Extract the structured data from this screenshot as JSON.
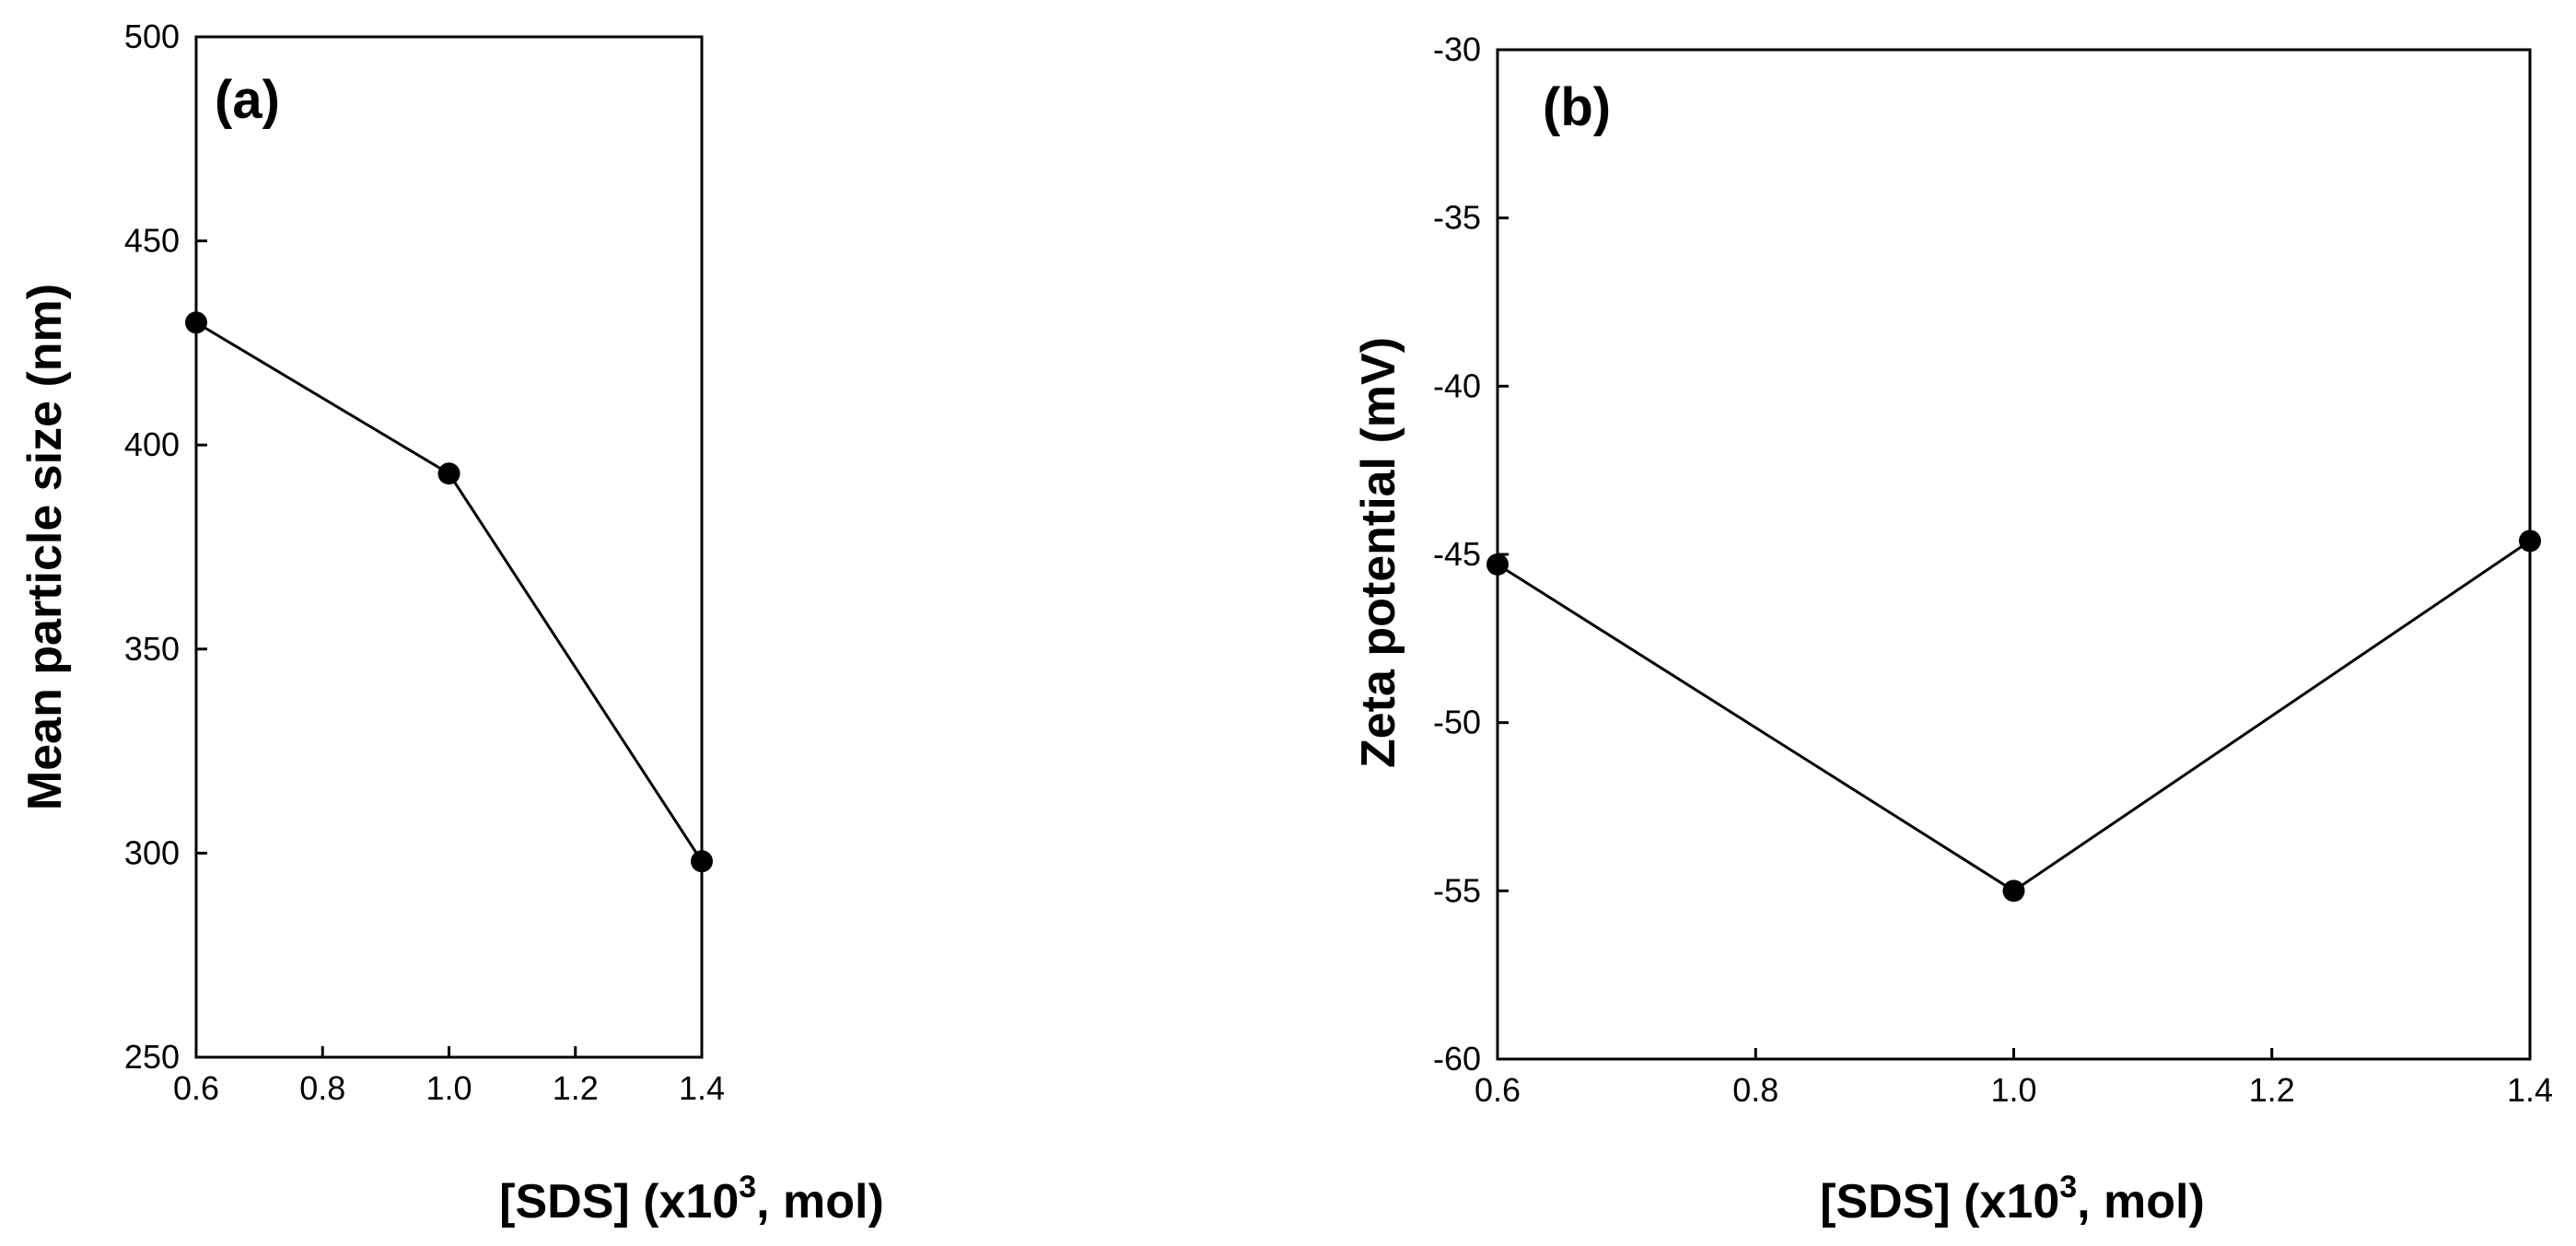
{
  "chart_data": [
    {
      "type": "line",
      "panel_label": "(a)",
      "title": "",
      "x": [
        0.6,
        1.0,
        1.4
      ],
      "series": [
        {
          "name": "Mean particle size",
          "values": [
            430,
            393,
            298
          ]
        }
      ],
      "xlabel": {
        "prefix": "[SDS] (x10",
        "superscript": "3",
        "suffix": ", mol)"
      },
      "ylabel": "Mean particle size (nm)",
      "xlim": [
        0.6,
        1.4
      ],
      "ylim": [
        250,
        500
      ],
      "x_ticks": [
        0.6,
        0.8,
        1.0,
        1.2,
        1.4
      ],
      "x_tick_labels": [
        "0.6",
        "0.8",
        "1.0",
        "1.2",
        "1.4"
      ],
      "y_ticks": [
        250,
        300,
        350,
        400,
        450,
        500
      ],
      "y_tick_labels": [
        "250",
        "300",
        "350",
        "400",
        "450",
        "500"
      ],
      "grid": false,
      "marker": "filled-circle",
      "colors": {
        "line": "#000000",
        "marker": "#000000",
        "frame": "#000000"
      }
    },
    {
      "type": "line",
      "panel_label": "(b)",
      "title": "",
      "x": [
        0.6,
        1.0,
        1.4
      ],
      "series": [
        {
          "name": "Zeta potential",
          "values": [
            -45.3,
            -55.0,
            -44.6
          ]
        }
      ],
      "xlabel": {
        "prefix": "[SDS] (x10",
        "superscript": "3",
        "suffix": ", mol)"
      },
      "ylabel": "Zeta potential (mV)",
      "xlim": [
        0.6,
        1.4
      ],
      "ylim": [
        -60,
        -30
      ],
      "x_ticks": [
        0.6,
        0.8,
        1.0,
        1.2,
        1.4
      ],
      "x_tick_labels": [
        "0.6",
        "0.8",
        "1.0",
        "1.2",
        "1.4"
      ],
      "y_ticks": [
        -60,
        -55,
        -50,
        -45,
        -40,
        -35,
        -30
      ],
      "y_tick_labels": [
        "-60",
        "-55",
        "-50",
        "-45",
        "-40",
        "-35",
        "-30"
      ],
      "grid": false,
      "marker": "filled-circle",
      "colors": {
        "line": "#000000",
        "marker": "#000000",
        "frame": "#000000"
      }
    }
  ]
}
